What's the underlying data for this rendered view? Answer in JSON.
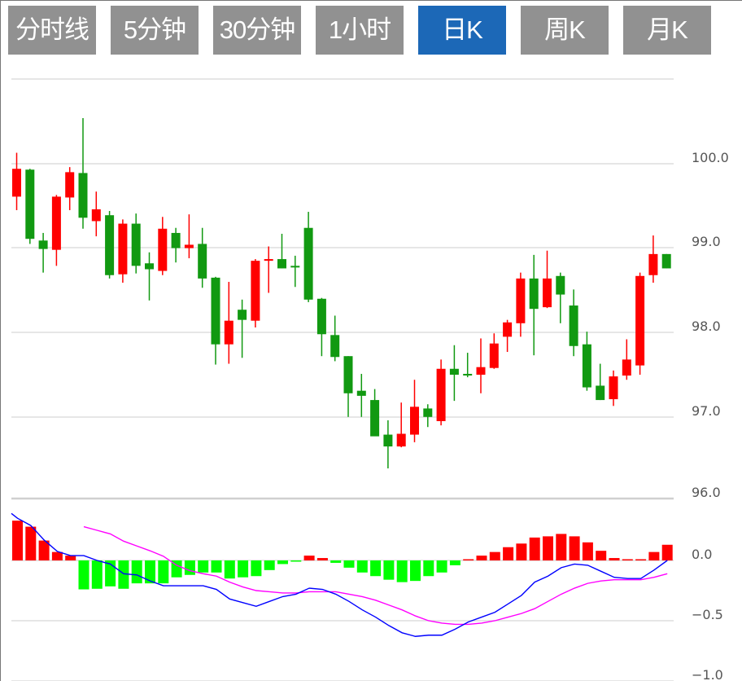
{
  "tabs": [
    {
      "label": "分时线",
      "active": false
    },
    {
      "label": "5分钟",
      "active": false
    },
    {
      "label": "30分钟",
      "active": false
    },
    {
      "label": "1小时",
      "active": false
    },
    {
      "label": "日K",
      "active": true
    },
    {
      "label": "周K",
      "active": false
    },
    {
      "label": "月K",
      "active": false
    }
  ],
  "colors": {
    "tab_active": "#1c68b7",
    "tab_inactive": "#919191",
    "up": "#ff0000",
    "down": "#119911",
    "hist_up": "#ff0000",
    "hist_down": "#00ff00",
    "dif": "#0000ff",
    "dea": "#ff00ff"
  },
  "chart_data": [
    {
      "type": "candlestick",
      "title": "",
      "ylim": [
        96.0,
        101.0
      ],
      "y_ticks": [
        "100.0",
        "99.0",
        "98.0",
        "97.0",
        "96.0"
      ],
      "grid": true,
      "ohlc": [
        [
          99.61,
          99.94,
          100.13,
          99.45
        ],
        [
          99.93,
          99.11,
          99.94,
          99.05
        ],
        [
          99.09,
          98.99,
          99.18,
          98.71
        ],
        [
          98.98,
          99.61,
          99.63,
          98.79
        ],
        [
          99.6,
          99.9,
          99.96,
          99.45
        ],
        [
          99.89,
          99.36,
          100.54,
          99.23
        ],
        [
          99.32,
          99.46,
          99.67,
          99.14
        ],
        [
          99.39,
          98.68,
          99.44,
          98.64
        ],
        [
          98.69,
          99.29,
          99.34,
          98.59
        ],
        [
          99.29,
          98.79,
          99.41,
          98.7
        ],
        [
          98.82,
          98.75,
          98.95,
          98.38
        ],
        [
          98.73,
          99.23,
          99.37,
          98.68
        ],
        [
          99.18,
          99.0,
          99.24,
          98.83
        ],
        [
          99.0,
          99.04,
          99.4,
          98.88
        ],
        [
          99.05,
          98.64,
          99.24,
          98.53
        ],
        [
          98.65,
          97.86,
          98.66,
          97.62
        ],
        [
          97.86,
          98.14,
          98.6,
          97.63
        ],
        [
          98.27,
          98.15,
          98.39,
          97.7
        ],
        [
          98.14,
          98.85,
          98.87,
          98.06
        ],
        [
          98.85,
          98.87,
          99.02,
          98.47
        ],
        [
          98.87,
          98.76,
          99.17,
          98.76
        ],
        [
          98.79,
          98.78,
          98.91,
          98.54
        ],
        [
          99.24,
          98.39,
          99.43,
          98.36
        ],
        [
          98.4,
          97.98,
          98.41,
          97.72
        ],
        [
          97.97,
          97.71,
          98.2,
          97.66
        ],
        [
          97.72,
          97.28,
          97.72,
          97.0
        ],
        [
          97.31,
          97.25,
          97.51,
          97.0
        ],
        [
          97.2,
          96.77,
          97.33,
          97.01
        ],
        [
          96.79,
          96.65,
          96.96,
          96.39
        ],
        [
          96.65,
          96.8,
          97.17,
          96.64
        ],
        [
          96.79,
          97.12,
          97.44,
          96.7
        ],
        [
          97.1,
          97.0,
          97.15,
          96.88
        ],
        [
          96.95,
          97.57,
          97.68,
          96.9
        ],
        [
          97.57,
          97.5,
          97.85,
          97.19
        ],
        [
          97.51,
          97.5,
          97.76,
          97.47
        ],
        [
          97.5,
          97.59,
          97.93,
          97.28
        ],
        [
          97.58,
          97.87,
          97.99,
          97.57
        ],
        [
          97.95,
          98.12,
          98.15,
          97.77
        ],
        [
          98.11,
          98.64,
          98.71,
          97.95
        ],
        [
          98.64,
          98.28,
          98.92,
          97.73
        ],
        [
          98.3,
          98.64,
          98.97,
          98.29
        ],
        [
          98.67,
          98.45,
          98.71,
          98.11
        ],
        [
          98.32,
          97.84,
          98.51,
          97.72
        ],
        [
          97.86,
          97.35,
          98.01,
          97.31
        ],
        [
          97.37,
          97.2,
          97.63,
          97.2
        ],
        [
          97.21,
          97.48,
          97.55,
          97.13
        ],
        [
          97.49,
          97.68,
          97.92,
          97.44
        ],
        [
          97.61,
          98.67,
          98.71,
          97.5
        ],
        [
          98.68,
          98.93,
          99.15,
          98.59
        ],
        [
          98.93,
          98.76,
          98.93,
          98.76
        ]
      ]
    },
    {
      "type": "bar+line",
      "title": "",
      "ylim": [
        -1.0,
        0.5
      ],
      "y_ticks": [
        "0.0",
        "−0.5",
        "−1.0"
      ],
      "grid": true,
      "histogram": [
        0.33,
        0.28,
        0.165,
        0.07,
        0.04,
        -0.24,
        -0.235,
        -0.215,
        -0.235,
        -0.19,
        -0.19,
        -0.19,
        -0.14,
        -0.12,
        -0.1,
        -0.1,
        -0.15,
        -0.14,
        -0.13,
        -0.08,
        -0.03,
        -0.01,
        0.04,
        0.02,
        -0.02,
        -0.06,
        -0.1,
        -0.13,
        -0.16,
        -0.18,
        -0.17,
        -0.13,
        -0.1,
        -0.04,
        0.01,
        0.04,
        0.07,
        0.11,
        0.14,
        0.19,
        0.2,
        0.22,
        0.2,
        0.15,
        0.08,
        0.02,
        0.01,
        0.01,
        0.07,
        0.13
      ],
      "dif": [
        0.35,
        0.29,
        0.17,
        0.075,
        0.04,
        0.04,
        0.0,
        -0.03,
        -0.11,
        -0.12,
        -0.17,
        -0.21,
        -0.21,
        -0.21,
        -0.21,
        -0.24,
        -0.32,
        -0.35,
        -0.38,
        -0.34,
        -0.3,
        -0.28,
        -0.23,
        -0.24,
        -0.28,
        -0.34,
        -0.41,
        -0.47,
        -0.54,
        -0.6,
        -0.63,
        -0.62,
        -0.62,
        -0.57,
        -0.51,
        -0.47,
        -0.43,
        -0.36,
        -0.29,
        -0.18,
        -0.13,
        -0.06,
        -0.03,
        -0.04,
        -0.09,
        -0.14,
        -0.15,
        -0.15,
        -0.08,
        0.0
      ],
      "dea": [
        null,
        null,
        null,
        null,
        null,
        0.28,
        0.25,
        0.22,
        0.16,
        0.12,
        0.08,
        0.035,
        -0.04,
        -0.085,
        -0.11,
        -0.13,
        -0.18,
        -0.22,
        -0.25,
        -0.26,
        -0.27,
        -0.27,
        -0.26,
        -0.26,
        -0.26,
        -0.28,
        -0.3,
        -0.33,
        -0.37,
        -0.41,
        -0.46,
        -0.5,
        -0.52,
        -0.53,
        -0.53,
        -0.52,
        -0.5,
        -0.47,
        -0.44,
        -0.4,
        -0.34,
        -0.28,
        -0.23,
        -0.19,
        -0.17,
        -0.16,
        -0.16,
        -0.16,
        -0.14,
        -0.11
      ]
    }
  ]
}
